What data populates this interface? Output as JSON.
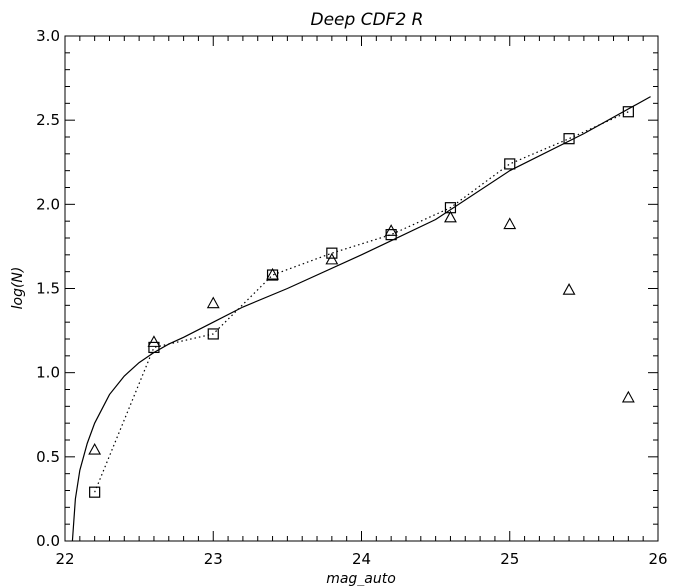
{
  "chart_data": {
    "type": "scatter",
    "title": "Deep CDF2 R",
    "xlabel": "mag_auto",
    "ylabel": "log(N)",
    "xlim": [
      22,
      26
    ],
    "ylim": [
      0,
      3
    ],
    "xticks": [
      "22",
      "23",
      "24",
      "25",
      "26"
    ],
    "yticks": [
      "0.0",
      "0.5",
      "1.0",
      "1.5",
      "2.0",
      "2.5",
      "3.0"
    ],
    "series": [
      {
        "marker": "square",
        "connect": "dotted",
        "x": [
          22.2,
          22.6,
          23.0,
          23.4,
          23.8,
          24.2,
          24.6,
          25.0,
          25.4,
          25.8
        ],
        "y": [
          0.29,
          1.15,
          1.23,
          1.58,
          1.71,
          1.82,
          1.98,
          2.24,
          2.39,
          2.55
        ]
      },
      {
        "marker": "triangle",
        "connect": "none",
        "x": [
          22.2,
          22.6,
          23.0,
          23.4,
          23.8,
          24.2,
          24.6,
          25.0,
          25.4,
          25.8
        ],
        "y": [
          0.54,
          1.18,
          1.41,
          1.58,
          1.67,
          1.84,
          1.92,
          1.88,
          1.49,
          0.85
        ]
      },
      {
        "marker": "none",
        "connect": "solid",
        "fit": true,
        "x": [
          22.05,
          22.07,
          22.1,
          22.15,
          22.2,
          22.3,
          22.4,
          22.5,
          22.6,
          22.7,
          22.8,
          23.0,
          23.2,
          23.5,
          24.0,
          24.5,
          25.0,
          25.5,
          25.95
        ],
        "y": [
          0.0,
          0.25,
          0.42,
          0.58,
          0.7,
          0.87,
          0.98,
          1.06,
          1.12,
          1.17,
          1.21,
          1.3,
          1.39,
          1.5,
          1.7,
          1.91,
          2.2,
          2.42,
          2.64
        ]
      }
    ]
  }
}
